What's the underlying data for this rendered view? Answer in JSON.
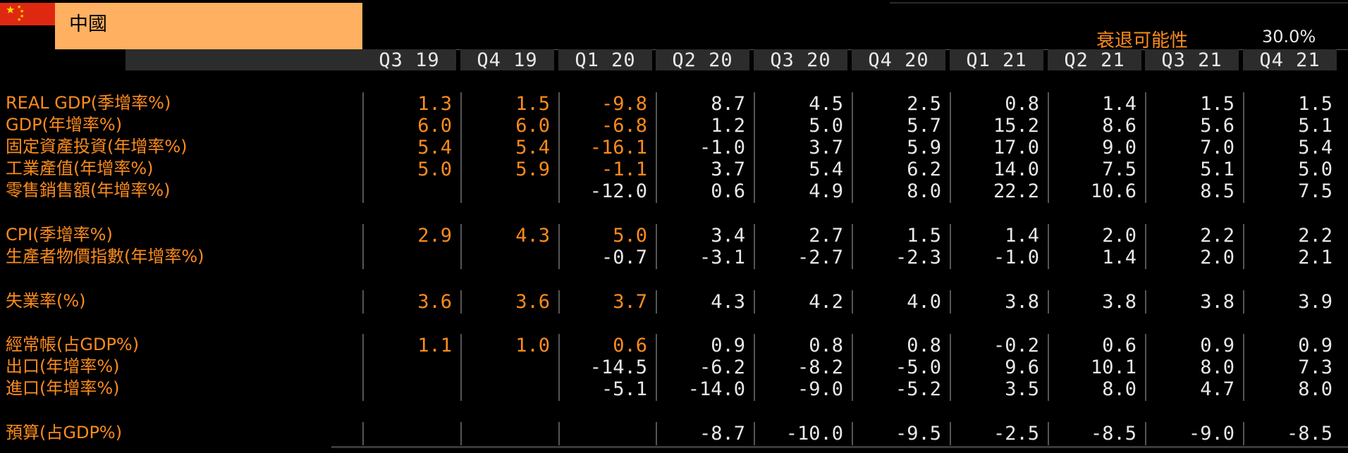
{
  "header": {
    "country": "中國",
    "recession_label": "衰退可能性",
    "recession_value": "30.0%"
  },
  "quarters": [
    "Q3 19",
    "Q4 19",
    "Q1 20",
    "Q2 20",
    "Q3 20",
    "Q4 20",
    "Q1 21",
    "Q2 21",
    "Q3 21",
    "Q4 21"
  ],
  "colors": {
    "actual": "#fb8b1e",
    "forecast": "#e8e8e8",
    "header_bar": "#2c2c2c",
    "country_bg": "#ffb061"
  },
  "rows": [
    {
      "label": "REAL GDP(季增率%)",
      "values": [
        "1.3",
        "1.5",
        "-9.8",
        "8.7",
        "4.5",
        "2.5",
        "0.8",
        "1.4",
        "1.5",
        "1.5"
      ],
      "actual": 3
    },
    {
      "label": "GDP(年增率%)",
      "values": [
        "6.0",
        "6.0",
        "-6.8",
        "1.2",
        "5.0",
        "5.7",
        "15.2",
        "8.6",
        "5.6",
        "5.1"
      ],
      "actual": 3
    },
    {
      "label": "固定資產投資(年增率%)",
      "values": [
        "5.4",
        "5.4",
        "-16.1",
        "-1.0",
        "3.7",
        "5.9",
        "17.0",
        "9.0",
        "7.0",
        "5.4"
      ],
      "actual": 3
    },
    {
      "label": "工業產值(年增率%)",
      "values": [
        "5.0",
        "5.9",
        "-1.1",
        "3.7",
        "5.4",
        "6.2",
        "14.0",
        "7.5",
        "5.1",
        "5.0"
      ],
      "actual": 3
    },
    {
      "label": "零售銷售額(年增率%)",
      "values": [
        "",
        "",
        "-12.0",
        "0.6",
        "4.9",
        "8.0",
        "22.2",
        "10.6",
        "8.5",
        "7.5"
      ],
      "actual": 0
    },
    {
      "label": "CPI(季增率%)",
      "values": [
        "2.9",
        "4.3",
        "5.0",
        "3.4",
        "2.7",
        "1.5",
        "1.4",
        "2.0",
        "2.2",
        "2.2"
      ],
      "actual": 3
    },
    {
      "label": "生產者物價指數(年增率%)",
      "values": [
        "",
        "",
        "-0.7",
        "-3.1",
        "-2.7",
        "-2.3",
        "-1.0",
        "1.4",
        "2.0",
        "2.1"
      ],
      "actual": 0
    },
    {
      "label": "失業率(%)",
      "values": [
        "3.6",
        "3.6",
        "3.7",
        "4.3",
        "4.2",
        "4.0",
        "3.8",
        "3.8",
        "3.8",
        "3.9"
      ],
      "actual": 3
    },
    {
      "label": "經常帳(占GDP%)",
      "values": [
        "1.1",
        "1.0",
        "0.6",
        "0.9",
        "0.8",
        "0.8",
        "-0.2",
        "0.6",
        "0.9",
        "0.9"
      ],
      "actual": 3
    },
    {
      "label": "出口(年增率%)",
      "values": [
        "",
        "",
        "-14.5",
        "-6.2",
        "-8.2",
        "-5.0",
        "9.6",
        "10.1",
        "8.0",
        "7.3"
      ],
      "actual": 0
    },
    {
      "label": "進口(年增率%)",
      "values": [
        "",
        "",
        "-5.1",
        "-14.0",
        "-9.0",
        "-5.2",
        "3.5",
        "8.0",
        "4.7",
        "8.0"
      ],
      "actual": 0
    },
    {
      "label": "預算(占GDP%)",
      "values": [
        "",
        "",
        "",
        "-8.7",
        "-10.0",
        "-9.5",
        "-2.5",
        "-8.5",
        "-9.0",
        "-8.5"
      ],
      "actual": 0
    }
  ]
}
